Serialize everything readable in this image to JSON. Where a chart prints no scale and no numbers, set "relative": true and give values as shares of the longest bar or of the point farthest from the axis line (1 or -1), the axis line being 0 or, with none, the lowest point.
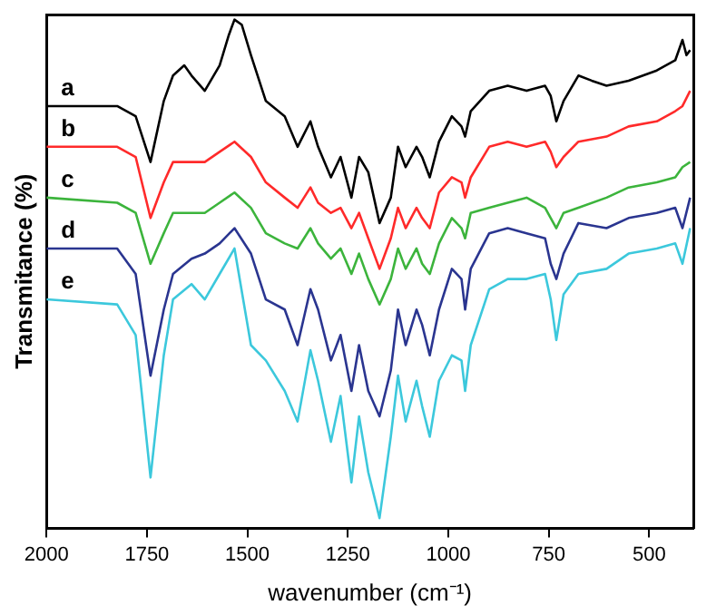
{
  "chart_data": {
    "type": "line",
    "xlabel": "wavenumber (cm⁻¹)",
    "ylabel": "Transmitance (%)",
    "relative": true,
    "tick_labels": "x",
    "grid": false,
    "legend": false,
    "marker": "none",
    "line_style": "solid",
    "xlim": [
      2000,
      390
    ],
    "xticks": [
      2000,
      1750,
      1500,
      1250,
      1000,
      750,
      500
    ],
    "x": [
      2000,
      1824,
      1778,
      1741,
      1708,
      1685,
      1639,
      1606,
      1569,
      1532,
      1491,
      1454,
      1407,
      1375,
      1343,
      1324,
      1292,
      1268,
      1241,
      1222,
      1199,
      1171,
      1143,
      1125,
      1106,
      1079,
      1065,
      1046,
      1023,
      991,
      967,
      958,
      944,
      898,
      852,
      805,
      759,
      745,
      731,
      713,
      676,
      606,
      551,
      481,
      435,
      417,
      398
    ],
    "series": [
      {
        "name": "a",
        "color": "#000000",
        "x": [
          2000,
          1824,
          1778,
          1741,
          1708,
          1685,
          1657,
          1639,
          1606,
          1569,
          1546,
          1532,
          1514,
          1491,
          1454,
          1407,
          1375,
          1343,
          1324,
          1292,
          1268,
          1241,
          1222,
          1199,
          1171,
          1143,
          1125,
          1106,
          1079,
          1065,
          1046,
          1023,
          991,
          967,
          958,
          944,
          898,
          852,
          805,
          759,
          745,
          731,
          713,
          676,
          643,
          606,
          551,
          481,
          435,
          417,
          407,
          398
        ],
        "values": [
          0.83,
          0.83,
          0.81,
          0.72,
          0.84,
          0.89,
          0.91,
          0.89,
          0.86,
          0.91,
          0.97,
          1.0,
          0.99,
          0.93,
          0.84,
          0.81,
          0.75,
          0.8,
          0.75,
          0.69,
          0.73,
          0.65,
          0.73,
          0.7,
          0.6,
          0.65,
          0.75,
          0.71,
          0.75,
          0.73,
          0.69,
          0.76,
          0.81,
          0.79,
          0.77,
          0.82,
          0.86,
          0.87,
          0.86,
          0.87,
          0.85,
          0.8,
          0.84,
          0.89,
          0.88,
          0.87,
          0.88,
          0.9,
          0.92,
          0.96,
          0.93,
          0.94
        ]
      },
      {
        "name": "b",
        "color": "#ff2a2a",
        "values": [
          0.75,
          0.75,
          0.73,
          0.61,
          0.68,
          0.72,
          0.72,
          0.72,
          0.74,
          0.76,
          0.73,
          0.68,
          0.65,
          0.63,
          0.67,
          0.64,
          0.62,
          0.63,
          0.59,
          0.62,
          0.57,
          0.51,
          0.57,
          0.63,
          0.59,
          0.63,
          0.61,
          0.59,
          0.66,
          0.69,
          0.68,
          0.65,
          0.69,
          0.75,
          0.76,
          0.75,
          0.76,
          0.74,
          0.71,
          0.73,
          0.76,
          0.77,
          0.79,
          0.8,
          0.82,
          0.83,
          0.86
        ]
      },
      {
        "name": "c",
        "color": "#3cb43c",
        "values": [
          0.65,
          0.64,
          0.62,
          0.52,
          0.58,
          0.62,
          0.62,
          0.62,
          0.64,
          0.66,
          0.63,
          0.58,
          0.56,
          0.55,
          0.59,
          0.56,
          0.53,
          0.55,
          0.5,
          0.54,
          0.49,
          0.44,
          0.49,
          0.55,
          0.51,
          0.55,
          0.52,
          0.5,
          0.56,
          0.61,
          0.59,
          0.57,
          0.62,
          0.63,
          0.64,
          0.65,
          0.63,
          0.61,
          0.59,
          0.62,
          0.63,
          0.65,
          0.67,
          0.68,
          0.69,
          0.71,
          0.72
        ]
      },
      {
        "name": "d",
        "color": "#2a3590",
        "values": [
          0.55,
          0.55,
          0.5,
          0.3,
          0.43,
          0.5,
          0.53,
          0.54,
          0.56,
          0.59,
          0.54,
          0.45,
          0.43,
          0.36,
          0.47,
          0.43,
          0.33,
          0.38,
          0.27,
          0.36,
          0.27,
          0.22,
          0.31,
          0.43,
          0.36,
          0.43,
          0.4,
          0.34,
          0.43,
          0.51,
          0.49,
          0.43,
          0.51,
          0.58,
          0.59,
          0.58,
          0.57,
          0.52,
          0.49,
          0.54,
          0.6,
          0.59,
          0.61,
          0.62,
          0.63,
          0.59,
          0.65
        ]
      },
      {
        "name": "e",
        "color": "#3cc8dc",
        "values": [
          0.45,
          0.44,
          0.38,
          0.1,
          0.34,
          0.45,
          0.48,
          0.45,
          0.5,
          0.55,
          0.36,
          0.33,
          0.27,
          0.21,
          0.35,
          0.29,
          0.17,
          0.26,
          0.09,
          0.22,
          0.11,
          0.02,
          0.18,
          0.3,
          0.21,
          0.29,
          0.24,
          0.18,
          0.29,
          0.34,
          0.33,
          0.27,
          0.36,
          0.47,
          0.49,
          0.49,
          0.5,
          0.45,
          0.37,
          0.46,
          0.5,
          0.51,
          0.54,
          0.55,
          0.56,
          0.52,
          0.59
        ]
      }
    ]
  }
}
